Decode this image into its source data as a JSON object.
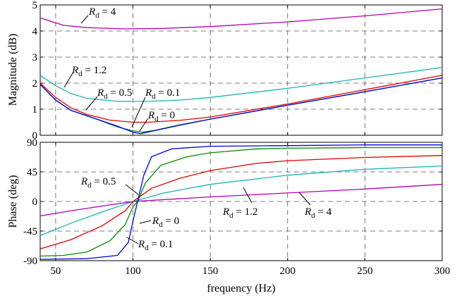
{
  "chart_data": [
    {
      "type": "line",
      "ylabel": "Magnitude (dB)",
      "xlim": [
        40,
        300
      ],
      "ylim": [
        0,
        5
      ],
      "yticks": [
        "0",
        "1",
        "2",
        "3",
        "4",
        "5"
      ],
      "grid": true,
      "series": [
        {
          "name": "R_d = 4",
          "color": "#b000b0",
          "points": [
            [
              40,
              4.5
            ],
            [
              55,
              4.22
            ],
            [
              70,
              4.13
            ],
            [
              95,
              4.08
            ],
            [
              120,
              4.1
            ],
            [
              150,
              4.17
            ],
            [
              200,
              4.35
            ],
            [
              250,
              4.58
            ],
            [
              300,
              4.85
            ]
          ]
        },
        {
          "name": "R_d = 1.2",
          "color": "#1cb4b4",
          "points": [
            [
              40,
              2.3
            ],
            [
              50,
              1.9
            ],
            [
              60,
              1.6
            ],
            [
              70,
              1.42
            ],
            [
              90,
              1.3
            ],
            [
              110,
              1.3
            ],
            [
              130,
              1.35
            ],
            [
              150,
              1.45
            ],
            [
              200,
              1.8
            ],
            [
              250,
              2.2
            ],
            [
              300,
              2.6
            ]
          ]
        },
        {
          "name": "R_d = 0.5",
          "color": "#e00000",
          "points": [
            [
              40,
              2.0
            ],
            [
              50,
              1.45
            ],
            [
              60,
              1.05
            ],
            [
              70,
              0.8
            ],
            [
              85,
              0.58
            ],
            [
              100,
              0.5
            ],
            [
              110,
              0.5
            ],
            [
              130,
              0.57
            ],
            [
              150,
              0.7
            ],
            [
              200,
              1.2
            ],
            [
              250,
              1.75
            ],
            [
              300,
              2.3
            ]
          ]
        },
        {
          "name": "R_d = 0.1",
          "color": "#009000",
          "points": [
            [
              40,
              1.95
            ],
            [
              50,
              1.35
            ],
            [
              60,
              0.95
            ],
            [
              75,
              0.65
            ],
            [
              90,
              0.32
            ],
            [
              100,
              0.17
            ],
            [
              106,
              0.12
            ],
            [
              115,
              0.2
            ],
            [
              130,
              0.4
            ],
            [
              150,
              0.62
            ],
            [
              200,
              1.15
            ],
            [
              250,
              1.67
            ],
            [
              300,
              2.2
            ]
          ]
        },
        {
          "name": "R_d = 0",
          "color": "#0000e0",
          "points": [
            [
              40,
              1.95
            ],
            [
              50,
              1.35
            ],
            [
              60,
              0.95
            ],
            [
              75,
              0.65
            ],
            [
              90,
              0.35
            ],
            [
              100,
              0.12
            ],
            [
              105,
              0.06
            ],
            [
              112,
              0.15
            ],
            [
              130,
              0.38
            ],
            [
              150,
              0.62
            ],
            [
              200,
              1.15
            ],
            [
              250,
              1.67
            ],
            [
              300,
              2.2
            ]
          ]
        }
      ]
    },
    {
      "type": "line",
      "xlabel": "frequency (Hz)",
      "ylabel": "Phase (deg)",
      "xlim": [
        40,
        300
      ],
      "ylim": [
        -90,
        90
      ],
      "xticks": [
        "50",
        "100",
        "150",
        "200",
        "250",
        "300"
      ],
      "yticks": [
        "-90",
        "-45",
        "0",
        "45",
        "90"
      ],
      "grid": true,
      "series": [
        {
          "name": "R_d = 4",
          "color": "#b000b0",
          "points": [
            [
              40,
              -22
            ],
            [
              60,
              -14
            ],
            [
              80,
              -7
            ],
            [
              100,
              0
            ],
            [
              150,
              7
            ],
            [
              200,
              13
            ],
            [
              250,
              19
            ],
            [
              300,
              26
            ]
          ]
        },
        {
          "name": "R_d = 1.2",
          "color": "#1cb4b4",
          "points": [
            [
              40,
              -52
            ],
            [
              60,
              -33
            ],
            [
              80,
              -16
            ],
            [
              100,
              0
            ],
            [
              120,
              13
            ],
            [
              150,
              26
            ],
            [
              200,
              40
            ],
            [
              250,
              49
            ],
            [
              300,
              54
            ]
          ]
        },
        {
          "name": "R_d = 0.5",
          "color": "#e00000",
          "points": [
            [
              40,
              -72
            ],
            [
              60,
              -58
            ],
            [
              80,
              -37
            ],
            [
              95,
              -14
            ],
            [
              100,
              0
            ],
            [
              112,
              20
            ],
            [
              130,
              35
            ],
            [
              150,
              47
            ],
            [
              180,
              58
            ],
            [
              200,
              62
            ],
            [
              250,
              67
            ],
            [
              300,
              70
            ]
          ]
        },
        {
          "name": "R_d = 0.1",
          "color": "#009000",
          "points": [
            [
              40,
              -83
            ],
            [
              55,
              -82
            ],
            [
              70,
              -77
            ],
            [
              85,
              -60
            ],
            [
              95,
              -35
            ],
            [
              100,
              -8
            ],
            [
              103,
              0
            ],
            [
              108,
              28
            ],
            [
              118,
              55
            ],
            [
              135,
              68
            ],
            [
              150,
              74
            ],
            [
              180,
              80
            ],
            [
              200,
              81
            ],
            [
              250,
              82
            ],
            [
              300,
              82
            ]
          ]
        },
        {
          "name": "R_d = 0",
          "color": "#0000e0",
          "points": [
            [
              40,
              -88
            ],
            [
              70,
              -87
            ],
            [
              90,
              -82
            ],
            [
              97,
              -62
            ],
            [
              100,
              -30
            ],
            [
              103,
              0
            ],
            [
              107,
              40
            ],
            [
              112,
              68
            ],
            [
              125,
              80
            ],
            [
              150,
              84
            ],
            [
              200,
              85
            ],
            [
              250,
              86
            ],
            [
              300,
              86
            ]
          ]
        }
      ]
    }
  ],
  "annotations": {
    "mag_rd4": {
      "R": "R",
      "sub": "d",
      "value": " = 4"
    },
    "mag_rd12": {
      "R": "R",
      "sub": "d",
      "value": " = 1.2"
    },
    "mag_rd05": {
      "R": "R",
      "sub": "d",
      "value": " = 0.5"
    },
    "mag_rd01": {
      "R": "R",
      "sub": "d",
      "value": " = 0.1"
    },
    "mag_rd0": {
      "R": "R",
      "sub": "d",
      "value": " = 0"
    },
    "ph_rd05": {
      "R": "R",
      "sub": "d",
      "value": " = 0.5"
    },
    "ph_rd0": {
      "R": "R",
      "sub": "d",
      "value": " = 0"
    },
    "ph_rd01": {
      "R": "R",
      "sub": "d",
      "value": " = 0.1"
    },
    "ph_rd12": {
      "R": "R",
      "sub": "d",
      "value": " = 1.2"
    },
    "ph_rd4": {
      "R": "R",
      "sub": "d",
      "value": " = 4"
    }
  }
}
